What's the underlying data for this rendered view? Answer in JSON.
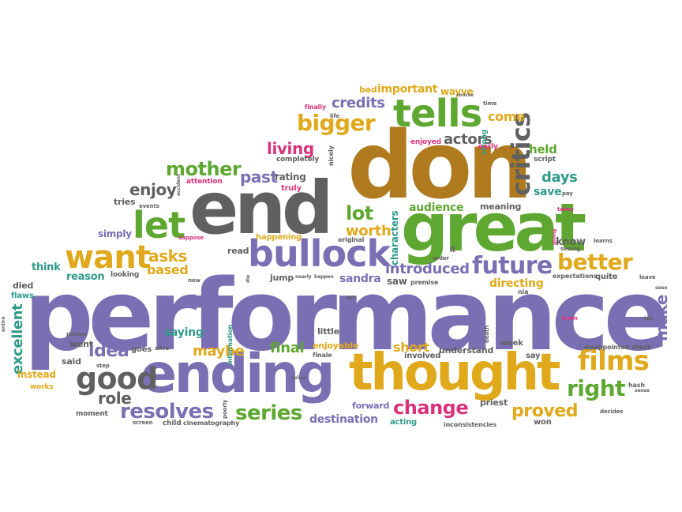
{
  "palette": {
    "purple": "#7b6fb4",
    "green": "#5ea832",
    "gold": "#e0a91b",
    "brown": "#b07a1e",
    "gray": "#606060",
    "teal": "#2f9a88",
    "pink": "#d9327c",
    "orange": "#e07a2a"
  },
  "words": [
    {
      "t": "performance",
      "c": "purple"
    },
    {
      "t": "don",
      "c": "brown"
    },
    {
      "t": "end",
      "c": "gray"
    },
    {
      "t": "great",
      "c": "green"
    },
    {
      "t": "ending",
      "c": "purple"
    },
    {
      "t": "thought",
      "c": "gold"
    },
    {
      "t": "bullock",
      "c": "purple"
    },
    {
      "t": "tells",
      "c": "green"
    },
    {
      "t": "critics",
      "c": "gray"
    },
    {
      "t": "let",
      "c": "green"
    },
    {
      "t": "want",
      "c": "gold"
    },
    {
      "t": "good",
      "c": "gray"
    },
    {
      "t": "films",
      "c": "gold"
    },
    {
      "t": "future",
      "c": "purple"
    },
    {
      "t": "better",
      "c": "gold"
    },
    {
      "t": "bigger",
      "c": "gold"
    },
    {
      "t": "mother",
      "c": "green"
    },
    {
      "t": "right",
      "c": "green"
    },
    {
      "t": "resolves",
      "c": "purple"
    },
    {
      "t": "series",
      "c": "green"
    },
    {
      "t": "change",
      "c": "pink"
    },
    {
      "t": "proved",
      "c": "gold"
    },
    {
      "t": "lot",
      "c": "green"
    },
    {
      "t": "idea",
      "c": "purple"
    },
    {
      "t": "role",
      "c": "gray"
    },
    {
      "t": "asks",
      "c": "gold"
    },
    {
      "t": "make",
      "c": "purple"
    },
    {
      "t": "excellent",
      "c": "teal"
    },
    {
      "t": "introduced",
      "c": "purple"
    },
    {
      "t": "living",
      "c": "pink"
    },
    {
      "t": "credits",
      "c": "purple"
    },
    {
      "t": "enjoy",
      "c": "gray"
    },
    {
      "t": "past",
      "c": "purple"
    },
    {
      "t": "rating",
      "c": "gray"
    },
    {
      "t": "actors",
      "c": "gray"
    },
    {
      "t": "worth",
      "c": "gold"
    },
    {
      "t": "days",
      "c": "teal"
    },
    {
      "t": "save",
      "c": "teal"
    },
    {
      "t": "held",
      "c": "green"
    },
    {
      "t": "come",
      "c": "gold"
    },
    {
      "t": "important",
      "c": "gold"
    },
    {
      "t": "bad",
      "c": "gold"
    },
    {
      "t": "wayve",
      "c": "gold"
    },
    {
      "t": "audience",
      "c": "green"
    },
    {
      "t": "meaning",
      "c": "gray"
    },
    {
      "t": "characters",
      "c": "teal"
    },
    {
      "t": "final",
      "c": "green"
    },
    {
      "t": "maybe",
      "c": "gold"
    },
    {
      "t": "saying",
      "c": "teal"
    },
    {
      "t": "short",
      "c": "gold"
    },
    {
      "t": "destination",
      "c": "purple"
    },
    {
      "t": "sandra",
      "c": "purple"
    },
    {
      "t": "saw",
      "c": "gray"
    },
    {
      "t": "directing",
      "c": "gold"
    },
    {
      "t": "know",
      "c": "gray"
    },
    {
      "t": "reason",
      "c": "teal"
    },
    {
      "t": "based",
      "c": "gold"
    },
    {
      "t": "think",
      "c": "teal"
    },
    {
      "t": "simply",
      "c": "purple"
    },
    {
      "t": "tries",
      "c": "gray"
    },
    {
      "t": "read",
      "c": "gray"
    },
    {
      "t": "jump",
      "c": "gray"
    },
    {
      "t": "went",
      "c": "gray"
    },
    {
      "t": "said",
      "c": "gray"
    },
    {
      "t": "instead",
      "c": "gold"
    },
    {
      "t": "works",
      "c": "gold"
    },
    {
      "t": "died",
      "c": "gray"
    },
    {
      "t": "flaws",
      "c": "teal"
    },
    {
      "t": "goes",
      "c": "gray"
    },
    {
      "t": "understand",
      "c": "gray"
    },
    {
      "t": "involved",
      "c": "gray"
    },
    {
      "t": "enjoyable",
      "c": "gold"
    },
    {
      "t": "forward",
      "c": "purple"
    },
    {
      "t": "acting",
      "c": "teal"
    },
    {
      "t": "priest",
      "c": "gray"
    },
    {
      "t": "won",
      "c": "gray"
    },
    {
      "t": "week",
      "c": "gray"
    },
    {
      "t": "say",
      "c": "gray"
    },
    {
      "t": "moment",
      "c": "gray"
    },
    {
      "t": "child",
      "c": "gray"
    },
    {
      "t": "cinematography",
      "c": "gray"
    },
    {
      "t": "little",
      "c": "gray"
    },
    {
      "t": "truly",
      "c": "pink"
    },
    {
      "t": "completely",
      "c": "gray"
    },
    {
      "t": "enjoyed",
      "c": "pink"
    },
    {
      "t": "strong",
      "c": "teal"
    },
    {
      "t": "happening",
      "c": "gold"
    },
    {
      "t": "looking",
      "c": "gray"
    },
    {
      "t": "original",
      "c": "gray"
    },
    {
      "t": "premise",
      "c": "gray"
    },
    {
      "t": "expectations",
      "c": "gray"
    },
    {
      "t": "quite",
      "c": "gray"
    },
    {
      "t": "disappointed",
      "c": "gray"
    },
    {
      "t": "shock",
      "c": "gray"
    },
    {
      "t": "decides",
      "c": "gray"
    },
    {
      "t": "inconsistencies",
      "c": "gray"
    },
    {
      "t": "hash",
      "c": "gray"
    },
    {
      "t": "attention",
      "c": "pink"
    },
    {
      "t": "finally",
      "c": "pink"
    },
    {
      "t": "life",
      "c": "gray"
    },
    {
      "t": "early",
      "c": "pink"
    },
    {
      "t": "script",
      "c": "gray"
    },
    {
      "t": "time",
      "c": "gray"
    },
    {
      "t": "pay",
      "c": "gray"
    },
    {
      "t": "takes",
      "c": "pink"
    },
    {
      "t": "learns",
      "c": "gray"
    },
    {
      "t": "seeing",
      "c": "gray"
    },
    {
      "t": "leave",
      "c": "gray"
    },
    {
      "t": "information",
      "c": "teal"
    },
    {
      "t": "finale",
      "c": "gray"
    },
    {
      "t": "death",
      "c": "gray"
    },
    {
      "t": "brain",
      "c": "pink"
    },
    {
      "t": "ll",
      "c": "gray"
    },
    {
      "t": "order",
      "c": "gray"
    },
    {
      "t": "nia",
      "c": "gray"
    },
    {
      "t": "events",
      "c": "gray"
    },
    {
      "t": "suppose",
      "c": "pink"
    },
    {
      "t": "new",
      "c": "gray"
    },
    {
      "t": "course",
      "c": "gray"
    },
    {
      "t": "nicely",
      "c": "gray"
    },
    {
      "t": "person",
      "c": "gray"
    },
    {
      "t": "step",
      "c": "gray"
    },
    {
      "t": "julian",
      "c": "gray"
    },
    {
      "t": "poorly",
      "c": "gray"
    },
    {
      "t": "screen",
      "c": "gray"
    },
    {
      "t": "isn",
      "c": "gray"
    },
    {
      "t": "seen",
      "c": "gray"
    },
    {
      "t": "sense",
      "c": "gray"
    },
    {
      "t": "alive",
      "c": "gray"
    },
    {
      "t": "giving",
      "c": "pink"
    },
    {
      "t": "happen",
      "c": "gray"
    },
    {
      "t": "nearly",
      "c": "gray"
    },
    {
      "t": "accident",
      "c": "gray"
    },
    {
      "t": "entire",
      "c": "gray"
    },
    {
      "t": "die",
      "c": "gray"
    },
    {
      "t": "ago",
      "c": "gray"
    }
  ]
}
